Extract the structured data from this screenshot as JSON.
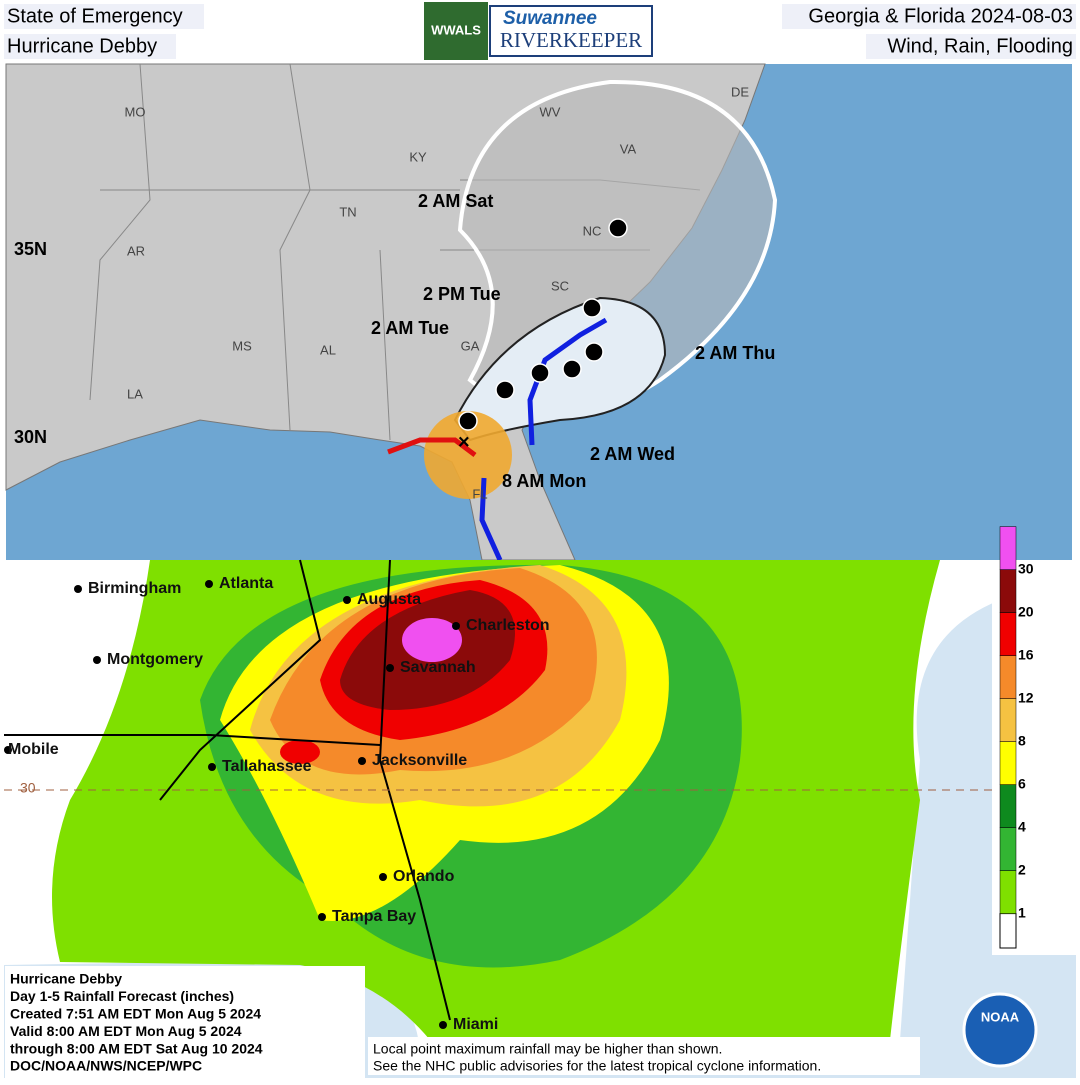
{
  "header": {
    "top_left": "State of Emergency",
    "bottom_left": "Hurricane Debby",
    "top_right": "Georgia & Florida 2024-08-03",
    "bottom_right": "Wind, Rain, Flooding",
    "logo": {
      "badge": "WWALS",
      "title": "Suwannee",
      "subtitle": "RIVERKEEPER"
    }
  },
  "track_map": {
    "states": [
      "MO",
      "KY",
      "WV",
      "VA",
      "TN",
      "NC",
      "AR",
      "SC",
      "MS",
      "AL",
      "GA",
      "LA",
      "FL",
      "DE"
    ],
    "latitudes": [
      "35N",
      "30N"
    ],
    "forecast_labels": [
      "2 AM Sat",
      "2 PM Tue",
      "2 AM Tue",
      "2 AM Thu",
      "2 AM Wed",
      "8 AM Mon"
    ]
  },
  "rainfall_map": {
    "cities": [
      "Birmingham",
      "Atlanta",
      "Augusta",
      "Charleston",
      "Montgomery",
      "Savannah",
      "Mobile",
      "Tallahassee",
      "Jacksonville",
      "Orlando",
      "Tampa Bay",
      "Miami"
    ],
    "latitude": "30",
    "legend": [
      {
        "label": "1",
        "color": "#7fe000"
      },
      {
        "label": "2",
        "color": "#33b533"
      },
      {
        "label": "4",
        "color": "#0e8a1e"
      },
      {
        "label": "6",
        "color": "#ffff00"
      },
      {
        "label": "8",
        "color": "#f5c242"
      },
      {
        "label": "12",
        "color": "#f58a2a"
      },
      {
        "label": "16",
        "color": "#f00000"
      },
      {
        "label": "20",
        "color": "#8b0a0a"
      },
      {
        "label": "30",
        "color": "#f050f0"
      }
    ],
    "info": [
      "Hurricane Debby",
      "Day 1-5 Rainfall Forecast (inches)",
      "Created 7:51 AM EDT Mon Aug 5 2024",
      "Valid 8:00 AM EDT Mon Aug 5 2024",
      "through 8:00 AM EDT Sat Aug 10 2024",
      "DOC/NOAA/NWS/NCEP/WPC"
    ],
    "note": [
      "Local point maximum rainfall may be higher than shown.",
      "See the NHC public advisories for the latest tropical cyclone information."
    ],
    "logo": "NOAA"
  }
}
